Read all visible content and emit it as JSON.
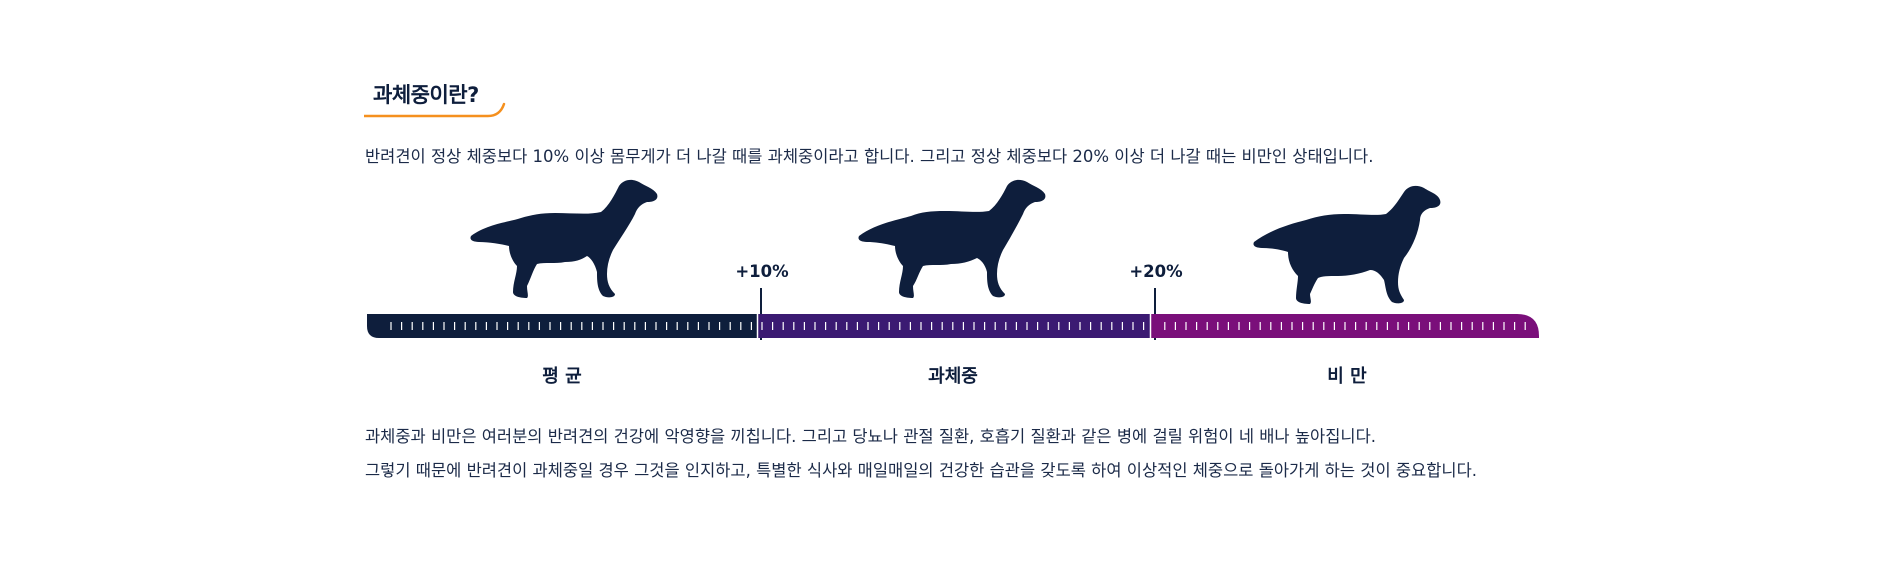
{
  "section": {
    "title": "과체중이란?",
    "intro": "반려견이 정상 체중보다 10% 이상 몸무게가 더 나갈 때를 과체중이라고 합니다.  그리고 정상 체중보다 20% 이상 더 나갈 때는 비만인 상태입니다."
  },
  "scale": {
    "markers": [
      "+10%",
      "+20%"
    ],
    "segments": [
      {
        "label": "평 균",
        "color": "#0e1e3c"
      },
      {
        "label": "과체중",
        "color": "#3b1a72"
      },
      {
        "label": "비 만",
        "color": "#7a0f7a"
      }
    ]
  },
  "footer": {
    "line1": "과체중과 비만은 여러분의 반려견의 건강에 악영향을 끼칩니다. 그리고 당뇨나 관절 질환, 호흡기 질환과 같은 병에 걸릴 위험이 네 배나 높아집니다.",
    "line2": "그렇기 때문에 반려견이 과체중일 경우 그것을 인지하고, 특별한 식사와 매일매일의 건강한 습관을 갖도록 하여 이상적인 체중으로 돌아가게 하는 것이 중요합니다."
  },
  "colors": {
    "accent_orange": "#f5901e",
    "navy": "#0e1e3c",
    "purple": "#3b1a72",
    "magenta": "#7a0f7a"
  },
  "icons": [
    "dog-average-icon",
    "dog-overweight-icon",
    "dog-obese-icon"
  ]
}
